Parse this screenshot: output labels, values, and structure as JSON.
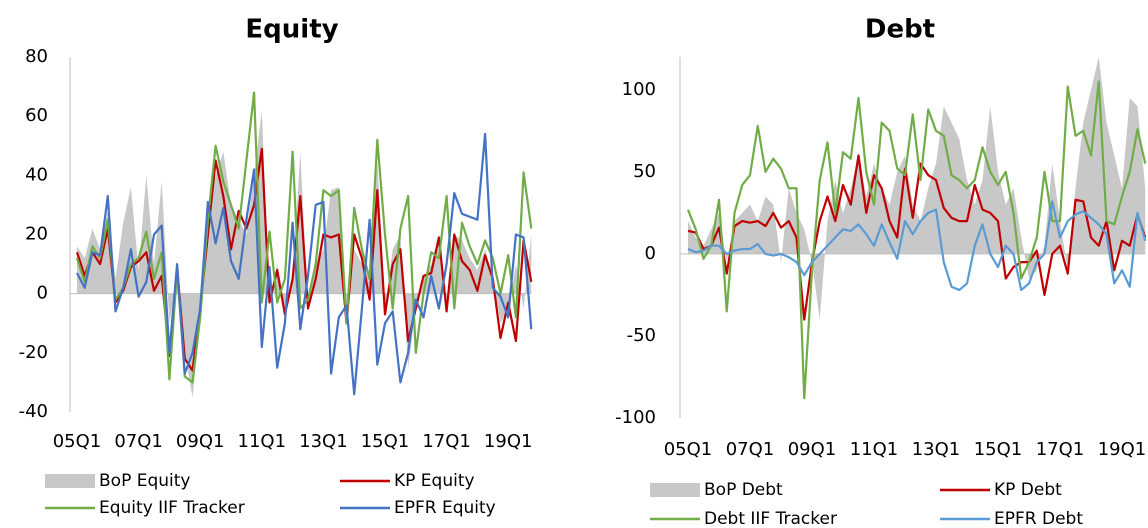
{
  "chart_data": [
    {
      "type": "line",
      "title": "Equity",
      "categories": [
        "05Q1",
        null,
        null,
        null,
        null,
        null,
        null,
        null,
        "07Q1",
        null,
        null,
        null,
        null,
        null,
        null,
        null,
        "09Q1",
        null,
        null,
        null,
        null,
        null,
        null,
        null,
        "11Q1",
        null,
        null,
        null,
        null,
        null,
        null,
        null,
        "13Q1",
        null,
        null,
        null,
        null,
        null,
        null,
        null,
        "15Q1",
        null,
        null,
        null,
        null,
        null,
        null,
        null,
        "17Q1",
        null,
        null,
        null,
        null,
        null,
        null,
        null,
        "19Q1",
        null,
        null,
        null
      ],
      "ylim": [
        -40,
        80
      ],
      "yticks": [
        -40,
        -20,
        0,
        20,
        40,
        60,
        80
      ],
      "series": [
        {
          "name": "BoP Equity",
          "style": "area",
          "color": "#c8c8c8",
          "values": [
            16,
            12,
            22,
            15,
            28,
            5,
            24,
            36,
            8,
            40,
            10,
            38,
            -10,
            5,
            -20,
            -35,
            -10,
            30,
            40,
            48,
            30,
            25,
            20,
            40,
            62,
            -2,
            10,
            -5,
            5,
            48,
            -5,
            10,
            15,
            35,
            36,
            -10,
            15,
            10,
            5,
            45,
            -5,
            15,
            20,
            -25,
            -5,
            5,
            10,
            20,
            -2,
            20,
            18,
            12,
            8,
            15,
            5,
            -10,
            -5,
            10,
            -5,
            20
          ]
        },
        {
          "name": "KP Equity",
          "style": "line",
          "color": "#c00000",
          "values": [
            14,
            6,
            14,
            10,
            22,
            -3,
            1,
            9,
            11,
            14,
            1,
            6,
            -21,
            9,
            -22,
            -26,
            -5,
            20,
            45,
            33,
            15,
            28,
            22,
            30,
            49,
            -3,
            8,
            -7,
            5,
            33,
            -5,
            5,
            20,
            19,
            20,
            -10,
            20,
            12,
            -2,
            35,
            -7,
            10,
            15,
            -16,
            -5,
            6,
            7,
            19,
            -6,
            20,
            11,
            8,
            1,
            13,
            5,
            -15,
            -3,
            -16,
            18,
            4
          ]
        },
        {
          "name": "Equity IIF Tracker",
          "style": "line",
          "color": "#70ad47",
          "values": [
            12,
            4,
            16,
            12,
            25,
            -2,
            2,
            10,
            12,
            21,
            5,
            14,
            -29,
            8,
            -28,
            -30,
            -8,
            25,
            50,
            38,
            30,
            22,
            45,
            68,
            -3,
            21,
            -3,
            5,
            48,
            -5,
            -2,
            10,
            35,
            33,
            35,
            -10,
            29,
            15,
            5,
            52,
            20,
            -5,
            22,
            33,
            -20,
            0,
            14,
            12,
            33,
            -5,
            24,
            16,
            10,
            18,
            12,
            0,
            13,
            -8,
            41,
            22
          ]
        },
        {
          "name": "EPFR Equity",
          "style": "line",
          "color": "#4472c4",
          "values": [
            7,
            2,
            14,
            13,
            33,
            -6,
            2,
            15,
            -1,
            4,
            20,
            23,
            -20,
            10,
            -27,
            -20,
            -5,
            31,
            17,
            29,
            11,
            5,
            25,
            42,
            -18,
            9,
            -25,
            -10,
            24,
            -12,
            6,
            30,
            31,
            -27,
            -8,
            -4,
            -34,
            -5,
            25,
            -24,
            -10,
            -6,
            -30,
            -20,
            -2,
            -8,
            6,
            -5,
            10,
            34,
            27,
            26,
            25,
            54,
            2,
            -1,
            -8,
            20,
            19,
            -12
          ]
        }
      ]
    },
    {
      "type": "line",
      "title": "Debt",
      "categories": [
        "05Q1",
        null,
        null,
        null,
        null,
        null,
        null,
        null,
        "07Q1",
        null,
        null,
        null,
        null,
        null,
        null,
        null,
        "09Q1",
        null,
        null,
        null,
        null,
        null,
        null,
        null,
        "11Q1",
        null,
        null,
        null,
        null,
        null,
        null,
        null,
        "13Q1",
        null,
        null,
        null,
        null,
        null,
        null,
        null,
        "15Q1",
        null,
        null,
        null,
        null,
        null,
        null,
        null,
        "17Q1",
        null,
        null,
        null,
        null,
        null,
        null,
        null,
        "19Q1",
        null,
        null,
        null
      ],
      "ylim": [
        -100,
        120
      ],
      "yticks": [
        -100,
        -50,
        0,
        50,
        100
      ],
      "series": [
        {
          "name": "BoP Debt",
          "style": "area",
          "color": "#c8c8c8",
          "values": [
            20,
            10,
            5,
            15,
            25,
            -5,
            20,
            25,
            30,
            20,
            35,
            30,
            -5,
            40,
            25,
            15,
            -5,
            -40,
            20,
            45,
            25,
            40,
            60,
            35,
            55,
            40,
            30,
            50,
            60,
            30,
            20,
            40,
            55,
            90,
            80,
            70,
            45,
            30,
            45,
            90,
            50,
            30,
            40,
            10,
            -15,
            -10,
            5,
            55,
            20,
            -10,
            40,
            80,
            100,
            120,
            80,
            60,
            40,
            95,
            90,
            40
          ]
        },
        {
          "name": "KP Debt",
          "style": "line",
          "color": "#c00000",
          "values": [
            14,
            13,
            3,
            5,
            16,
            -12,
            17,
            20,
            19,
            20,
            17,
            25,
            16,
            20,
            10,
            -40,
            -5,
            20,
            35,
            20,
            42,
            30,
            60,
            25,
            48,
            40,
            20,
            10,
            52,
            22,
            55,
            48,
            45,
            28,
            22,
            20,
            20,
            42,
            27,
            25,
            20,
            -15,
            -8,
            -5,
            -5,
            2,
            -25,
            0,
            5,
            -12,
            33,
            32,
            10,
            5,
            20,
            -10,
            8,
            5,
            24,
            10
          ]
        },
        {
          "name": "Debt IIF Tracker",
          "style": "line",
          "color": "#70ad47",
          "values": [
            27,
            15,
            -3,
            5,
            33,
            -35,
            25,
            42,
            48,
            78,
            50,
            58,
            52,
            40,
            40,
            -88,
            -10,
            45,
            68,
            25,
            62,
            58,
            95,
            50,
            30,
            80,
            75,
            52,
            48,
            85,
            45,
            88,
            75,
            72,
            48,
            45,
            40,
            45,
            65,
            50,
            42,
            50,
            25,
            -15,
            -5,
            10,
            50,
            20,
            20,
            102,
            72,
            75,
            60,
            105,
            20,
            18,
            35,
            50,
            76,
            55
          ]
        },
        {
          "name": "EPFR Debt",
          "style": "line",
          "color": "#5b9bd5",
          "values": [
            3,
            1,
            2,
            5,
            5,
            0,
            2,
            3,
            3,
            6,
            0,
            -1,
            0,
            -2,
            -5,
            -13,
            -5,
            0,
            5,
            10,
            15,
            14,
            18,
            12,
            5,
            18,
            7,
            -3,
            20,
            12,
            20,
            25,
            27,
            -5,
            -20,
            -22,
            -18,
            5,
            18,
            0,
            -8,
            5,
            0,
            -22,
            -18,
            -5,
            0,
            32,
            10,
            20,
            24,
            26,
            22,
            18,
            12,
            -18,
            -10,
            -20,
            25,
            8
          ]
        }
      ]
    }
  ]
}
